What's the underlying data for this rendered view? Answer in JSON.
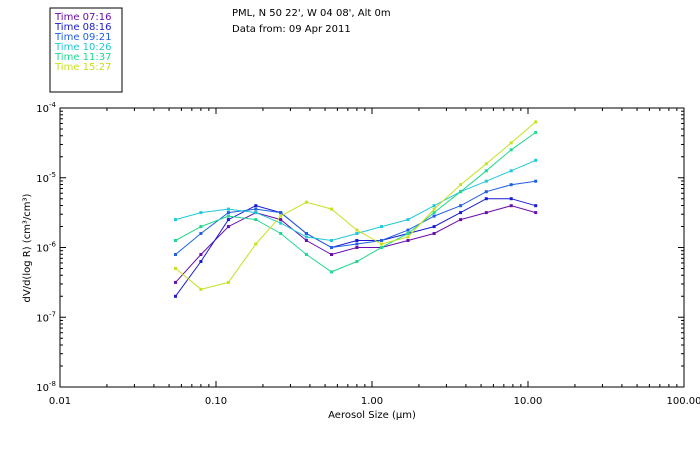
{
  "chart_data": {
    "type": "line",
    "title": "PML, N 50 22', W 04 08', Alt 0m",
    "subtitle": "Data from: 09 Apr 2011",
    "xlabel": "Aerosol Size (µm)",
    "ylabel": "dV/d(log R) (cm³/cm³)",
    "xscale": "log",
    "yscale": "log",
    "xlim": [
      0.01,
      100
    ],
    "ylim_exponent": [
      -8,
      -4
    ],
    "xticks": [
      {
        "value": 0.01,
        "label": "0.01"
      },
      {
        "value": 0.1,
        "label": "0.10"
      },
      {
        "value": 1,
        "label": "1.00"
      },
      {
        "value": 10,
        "label": "10.00"
      },
      {
        "value": 100,
        "label": "100.00"
      }
    ],
    "yticks": [
      {
        "exp": -8,
        "base": "10",
        "sup": "-8"
      },
      {
        "exp": -7,
        "base": "10",
        "sup": "-7"
      },
      {
        "exp": -6,
        "base": "10",
        "sup": "-6"
      },
      {
        "exp": -5,
        "base": "10",
        "sup": "-5"
      },
      {
        "exp": -4,
        "base": "10",
        "sup": "-4"
      }
    ],
    "legend_position": "top-left",
    "x": [
      0.055,
      0.08,
      0.12,
      0.18,
      0.26,
      0.38,
      0.55,
      0.8,
      1.15,
      1.7,
      2.5,
      3.7,
      5.4,
      7.8,
      11.2
    ],
    "series": [
      {
        "name": "Time 07:16",
        "color": "#6a0dad",
        "log10_values": [
          -6.5,
          -6.1,
          -5.7,
          -5.5,
          -5.6,
          -5.9,
          -6.1,
          -6.0,
          -6.0,
          -5.9,
          -5.8,
          -5.6,
          -5.5,
          -5.4,
          -5.5
        ]
      },
      {
        "name": "Time 08:16",
        "color": "#1a1ad0",
        "log10_values": [
          -6.7,
          -6.2,
          -5.6,
          -5.4,
          -5.5,
          -5.8,
          -6.0,
          -5.9,
          -5.9,
          -5.8,
          -5.7,
          -5.5,
          -5.3,
          -5.3,
          -5.4
        ]
      },
      {
        "name": "Time 09:21",
        "color": "#2060e0",
        "log10_values": [
          -6.1,
          -5.8,
          -5.5,
          -5.45,
          -5.5,
          -5.8,
          -6.0,
          -5.95,
          -5.9,
          -5.75,
          -5.55,
          -5.4,
          -5.2,
          -5.1,
          -5.05
        ]
      },
      {
        "name": "Time 10:26",
        "color": "#20c8d8",
        "log10_values": [
          -5.6,
          -5.5,
          -5.45,
          -5.5,
          -5.65,
          -5.85,
          -5.9,
          -5.8,
          -5.7,
          -5.6,
          -5.4,
          -5.2,
          -5.05,
          -4.9,
          -4.75
        ]
      },
      {
        "name": "Time 11:37",
        "color": "#20d890",
        "log10_values": [
          -5.9,
          -5.7,
          -5.55,
          -5.6,
          -5.8,
          -6.1,
          -6.35,
          -6.2,
          -6.0,
          -5.8,
          -5.5,
          -5.2,
          -4.9,
          -4.6,
          -4.35
        ]
      },
      {
        "name": "Time 15:27",
        "color": "#c8e020",
        "log10_values": [
          -6.3,
          -6.6,
          -6.5,
          -5.95,
          -5.55,
          -5.35,
          -5.45,
          -5.75,
          -5.95,
          -5.85,
          -5.45,
          -5.1,
          -4.8,
          -4.5,
          -4.2
        ]
      }
    ]
  }
}
